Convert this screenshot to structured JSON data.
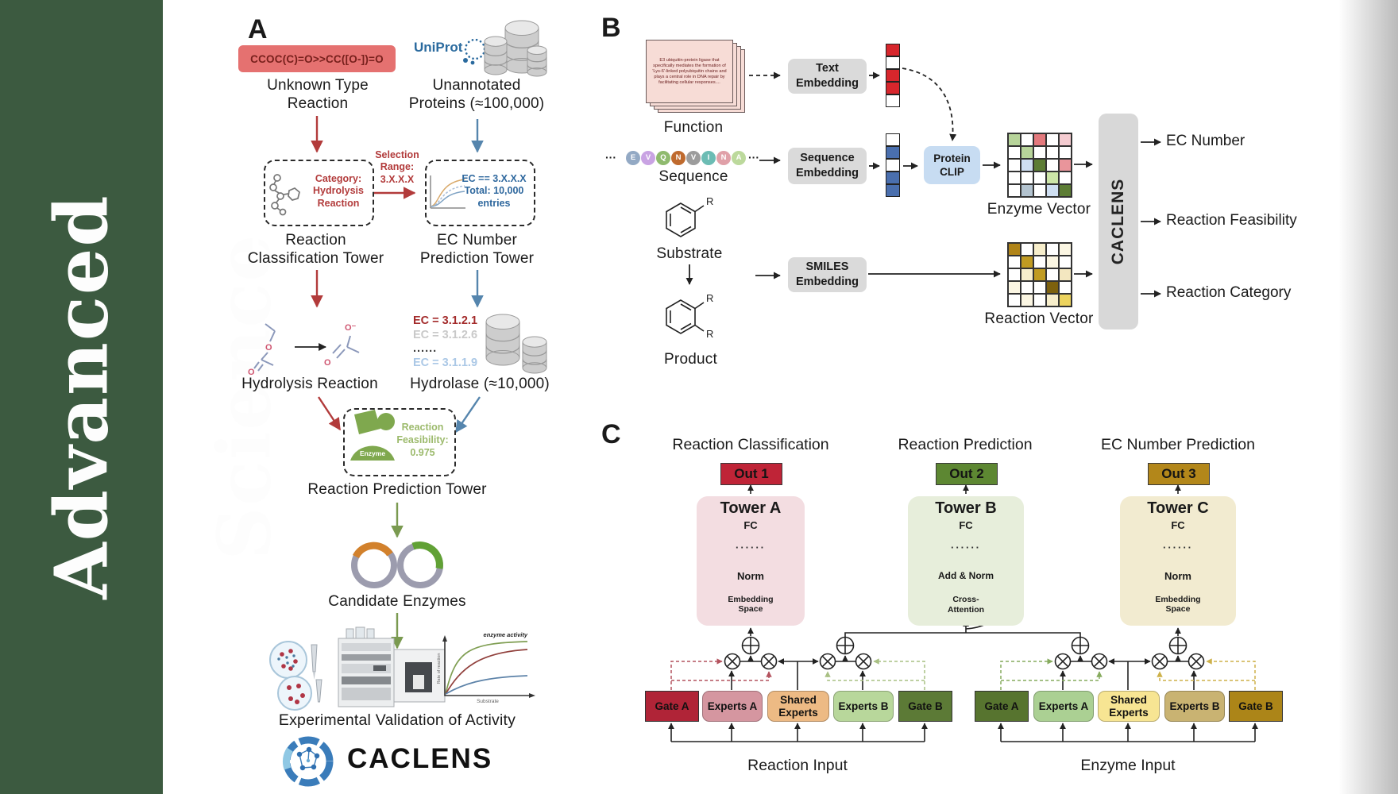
{
  "sidebar": {
    "journal": "Advanced Science",
    "bg": "#3c5a40"
  },
  "panelA": {
    "label": "A",
    "smiles": "CCOC(C)=O>>CC([O-])=O",
    "uniprot": "UniProt",
    "unknown_type": "Unknown Type\nReaction",
    "unannotated": "Unannotated\nProteins (≈100,000)",
    "category_box": "Category:\nHydrolysis\nReaction",
    "selection": "Selection\nRange:\n3.X.X.X",
    "ec_box": "EC == 3.X.X.X\nTotal: 10,000\nentries",
    "classification_tower": "Reaction\nClassification Tower",
    "ec_tower": "EC Number\nPrediction Tower",
    "hydrolysis": "Hydrolysis Reaction",
    "ec_list": [
      {
        "text": "EC = 3.1.2.1",
        "color": "#a32b2b"
      },
      {
        "text": "EC = 3.1.2.6",
        "color": "#c9c9c9"
      },
      {
        "text": "......",
        "color": "#3a3a3a"
      },
      {
        "text": "EC = 3.1.1.9",
        "color": "#abc8e6"
      }
    ],
    "hydrolase": "Hydrolase (≈10,000)",
    "enzyme_label": "Enzyme",
    "feasibility": "Reaction\nFeasibility:\n0.975",
    "prediction_tower": "Reaction Prediction Tower",
    "candidates": "Candidate Enzymes",
    "validation": "Experimental Validation of Activity",
    "brand": "CACLENS",
    "atoms": {
      "o": "O",
      "o_minus": "O⁻"
    },
    "activity_plot": {
      "title": "enzyme activity",
      "ylabel": "Rate of reaction",
      "xlabel": "Substrate"
    }
  },
  "panelB": {
    "label": "B",
    "function_card": "E3 ubiquitin-protein ligase that specifically mediates the formation of 'Lys-6'-linked polyubiquitin chains and plays a central role in DNA repair by facilitating cellular responses....",
    "function": "Function",
    "ellipsis": "···",
    "sequence": "Sequence",
    "residues": [
      {
        "letter": "E",
        "color": "#93a9c4"
      },
      {
        "letter": "V",
        "color": "#c9a3e3"
      },
      {
        "letter": "Q",
        "color": "#8fba6e"
      },
      {
        "letter": "N",
        "color": "#bf6a2e"
      },
      {
        "letter": "V",
        "color": "#9c9c9c"
      },
      {
        "letter": "I",
        "color": "#6cbcb4"
      },
      {
        "letter": "N",
        "color": "#e0a0a8"
      },
      {
        "letter": "A",
        "color": "#bcd99c"
      }
    ],
    "substrate": "Substrate",
    "product": "Product",
    "r_group": "R",
    "text_embedding": "Text\nEmbedding",
    "sequence_embedding": "Sequence\nEmbedding",
    "smiles_embedding": "SMILES\nEmbedding",
    "protein_clip": "Protein\nCLIP",
    "text_vector": [
      "#d7262c",
      "#ffffff",
      "#d7262c",
      "#d7262c",
      "#ffffff"
    ],
    "seq_vector": [
      "#ffffff",
      "#4a6fae",
      "#ffffff",
      "#4a6fae",
      "#4a6fae"
    ],
    "enzyme_vector_label": "Enzyme Vector",
    "reaction_vector_label": "Reaction Vector",
    "enzyme_vector": [
      [
        "#b7d49a",
        "#ffffff",
        "#e3797d",
        "#ffffff",
        "#f5ccd1"
      ],
      [
        "#ffffff",
        "#b7d49a",
        "#ffffff",
        "#ffffff",
        "#ffffff"
      ],
      [
        "#ffffff",
        "#cfdff2",
        "#5d7d35",
        "#ffffff",
        "#e9959b"
      ],
      [
        "#ffffff",
        "#ffffff",
        "#ffffff",
        "#cde6a8",
        "#ffffff"
      ],
      [
        "#ffffff",
        "#b3c3cf",
        "#ffffff",
        "#cfdff2",
        "#5d7d35"
      ]
    ],
    "reaction_vector": [
      [
        "#b08418",
        "#ffffff",
        "#f7eecb",
        "#ffffff",
        "#fbf6e3"
      ],
      [
        "#ffffff",
        "#c09b22",
        "#ffffff",
        "#fbf6e3",
        "#ffffff"
      ],
      [
        "#ffffff",
        "#f7eecb",
        "#c09b22",
        "#ffffff",
        "#f3e7c0"
      ],
      [
        "#fbf6e3",
        "#ffffff",
        "#ffffff",
        "#7d610e",
        "#ffffff"
      ],
      [
        "#ffffff",
        "#fbf6e3",
        "#ffffff",
        "#f7eecb",
        "#ecd35e"
      ]
    ],
    "caclens": "CACLENS",
    "outputs": [
      "EC Number",
      "Reaction Feasibility",
      "Reaction Category"
    ]
  },
  "panelC": {
    "label": "C",
    "columns": [
      "Reaction Classification",
      "Reaction Prediction",
      "EC Number Prediction"
    ],
    "outs": [
      "Out 1",
      "Out 2",
      "Out 3"
    ],
    "towerA": {
      "title": "Tower A",
      "fc": "FC",
      "dots": "······",
      "norm": "Norm",
      "base": "Embedding\nSpace"
    },
    "towerB": {
      "title": "Tower B",
      "fc": "FC",
      "dots": "······",
      "norm": "Add & Norm",
      "base": "Cross-\nAttention"
    },
    "towerC": {
      "title": "Tower C",
      "fc": "FC",
      "dots": "······",
      "norm": "Norm",
      "base": "Embedding\nSpace"
    },
    "moe_left": {
      "gate_a": "Gate A",
      "experts_a": "Experts A",
      "shared": "Shared\nExperts",
      "experts_b": "Experts B",
      "gate_b": "Gate B",
      "input": "Reaction Input"
    },
    "moe_right": {
      "gate_a": "Gate A",
      "experts_a": "Experts A",
      "shared": "Shared\nExperts",
      "experts_b": "Experts B",
      "gate_b": "Gate B",
      "input": "Enzyme Input"
    }
  }
}
